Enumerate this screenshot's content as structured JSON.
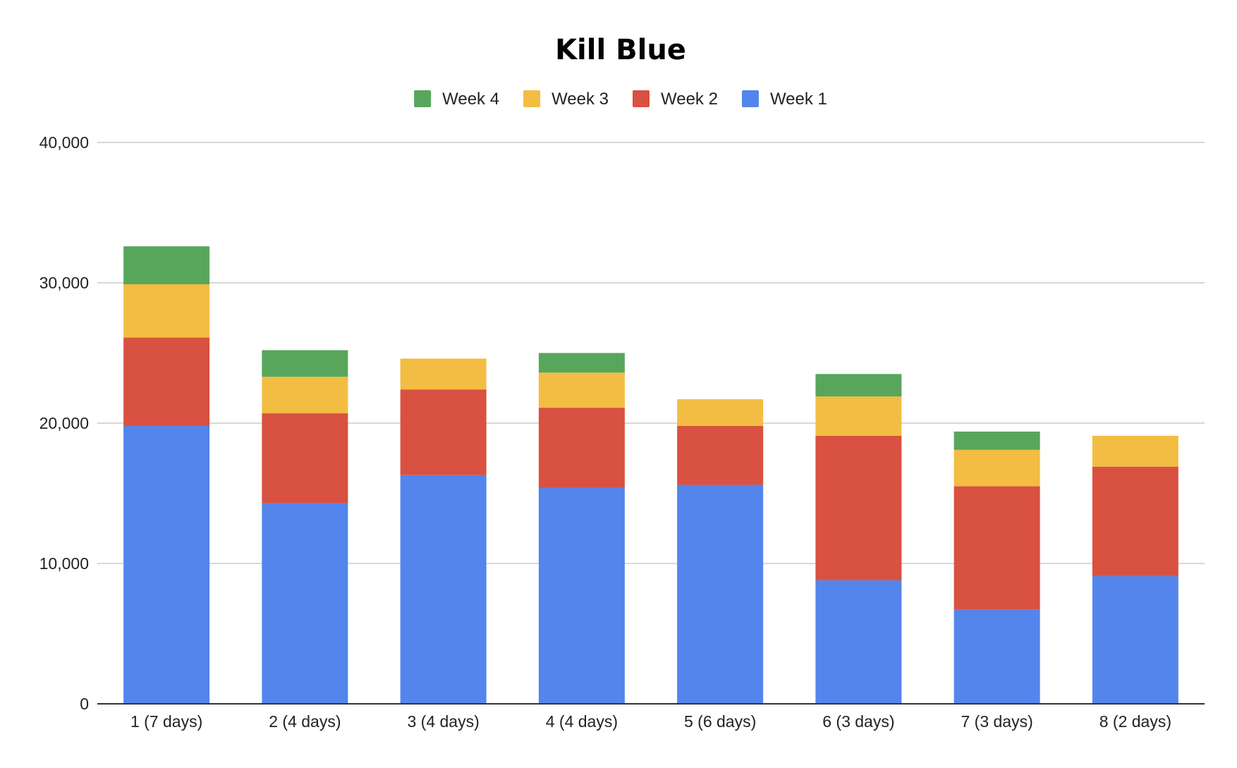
{
  "chart_data": {
    "type": "bar",
    "stacked": true,
    "title": "Kill Blue",
    "xlabel": "",
    "ylabel": "",
    "categories": [
      "1 (7 days)",
      "2 (4 days)",
      "3 (4 days)",
      "4 (4 days)",
      "5 (6 days)",
      "6 (3 days)",
      "7 (3 days)",
      "8 (2 days)"
    ],
    "series": [
      {
        "name": "Week 1",
        "color": "#5385ec",
        "values": [
          19800,
          14300,
          16300,
          15400,
          15600,
          8800,
          6700,
          9100
        ]
      },
      {
        "name": "Week 2",
        "color": "#d95140",
        "values": [
          6300,
          6400,
          6100,
          5700,
          4200,
          10300,
          8800,
          7800
        ]
      },
      {
        "name": "Week 3",
        "color": "#f2bd42",
        "values": [
          3800,
          2600,
          2200,
          2500,
          1900,
          2800,
          2600,
          2200
        ]
      },
      {
        "name": "Week 4",
        "color": "#58a65c",
        "values": [
          2700,
          1900,
          0,
          1400,
          0,
          1600,
          1300,
          0
        ]
      }
    ],
    "legend_order": [
      "Week 4",
      "Week 3",
      "Week 2",
      "Week 1"
    ],
    "legend_position": "top",
    "ylim": [
      0,
      40000
    ],
    "yticks": [
      0,
      10000,
      20000,
      30000,
      40000
    ],
    "ytick_labels": [
      "0",
      "10,000",
      "20,000",
      "30,000",
      "40,000"
    ],
    "grid": true
  }
}
